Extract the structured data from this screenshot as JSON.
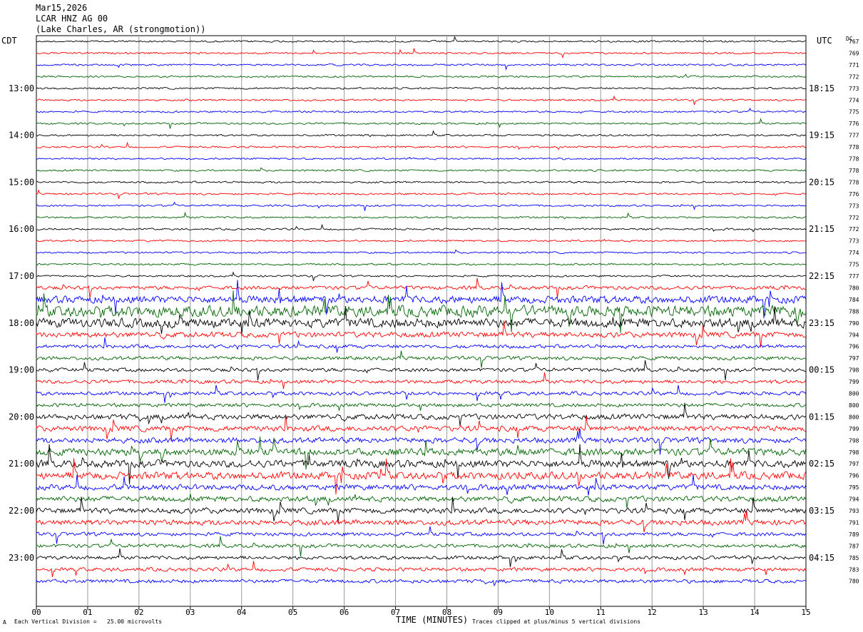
{
  "header": {
    "date": "Mar15,2026",
    "station": "LCAR HNZ AG 00",
    "location": "(Lake Charles, AR (strongmotion))"
  },
  "labels": {
    "left_tz": "CDT",
    "right_tz": "UTC",
    "dc_label": "DC"
  },
  "footer": {
    "scale": "Each Vertical Division =   25.00 microvolts",
    "clip": "Traces clipped at plus/minus 5 vertical divisions",
    "corner_mark": "A"
  },
  "colors": {
    "trace_cycle": [
      "#000000",
      "#ff0000",
      "#0000ff",
      "#006400"
    ],
    "grid": "#9a9a9a"
  },
  "chart_data": {
    "type": "line",
    "xlabel": "TIME (MINUTES)",
    "xlim": [
      0,
      15
    ],
    "x_ticks": [
      "00",
      "01",
      "02",
      "03",
      "04",
      "05",
      "06",
      "07",
      "08",
      "09",
      "10",
      "11",
      "12",
      "13",
      "14",
      "15"
    ],
    "left_hour_labels": [
      "13:00",
      "14:00",
      "15:00",
      "16:00",
      "17:00",
      "18:00",
      "19:00",
      "20:00",
      "21:00",
      "22:00",
      "23:00"
    ],
    "right_hour_labels": [
      "18:15",
      "19:15",
      "20:15",
      "21:15",
      "22:15",
      "23:15",
      "00:15",
      "01:15",
      "02:15",
      "03:15",
      "04:15"
    ],
    "dc_offsets": [
      767,
      769,
      771,
      772,
      773,
      774,
      775,
      776,
      777,
      778,
      778,
      778,
      778,
      776,
      773,
      772,
      772,
      773,
      774,
      775,
      777,
      780,
      784,
      788,
      790,
      794,
      796,
      797,
      798,
      799,
      800,
      800,
      800,
      799,
      798,
      798,
      797,
      796,
      795,
      794,
      793,
      791,
      789,
      787,
      785,
      783,
      780
    ],
    "trace_amplitudes": [
      1,
      1,
      1,
      1,
      1,
      1,
      1,
      1,
      1,
      1,
      1,
      1,
      1,
      1,
      1,
      1,
      1,
      1,
      1,
      1,
      1,
      2,
      4,
      6,
      5,
      3,
      2,
      2,
      2,
      2,
      2,
      2,
      3,
      3,
      3,
      4,
      4,
      4,
      3,
      3,
      3,
      3,
      2,
      2,
      2,
      2,
      2
    ],
    "series_note": ""
  }
}
